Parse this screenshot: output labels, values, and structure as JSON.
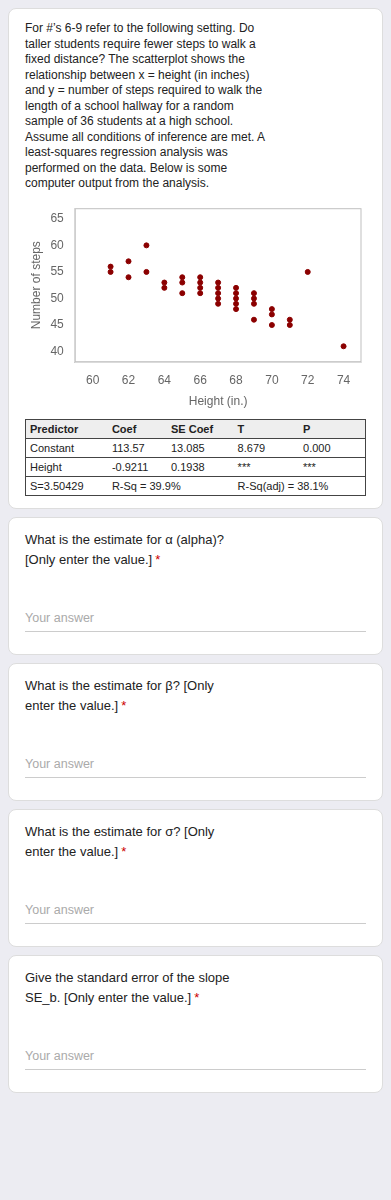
{
  "chart_data": {
    "type": "scatter",
    "title": [
      "For #’s 6-9 refer to the following setting. Do",
      "taller students require fewer steps to walk a",
      "fixed distance? The scatterplot shows the",
      "relationship between x = height (in inches)",
      "and y = number of steps required to walk the",
      "length of a school hallway for a random",
      "sample of 36 students at a high school.",
      "Assume all conditions of inference are met. A",
      "least-squares regression analysis was",
      "performed on the data. Below is some",
      "computer output from the analysis."
    ],
    "x": [
      61,
      61,
      62,
      62,
      63,
      63,
      64,
      64,
      65,
      65,
      65,
      66,
      66,
      66,
      66,
      67,
      67,
      67,
      67,
      67,
      68,
      68,
      68,
      68,
      68,
      69,
      69,
      69,
      69,
      70,
      70,
      70,
      71,
      71,
      72,
      74
    ],
    "values": [
      56,
      55,
      57,
      54,
      60,
      55,
      53,
      52,
      54,
      53,
      51,
      54,
      53,
      52,
      51,
      53,
      52,
      51,
      50,
      49,
      52,
      51,
      50,
      49,
      48,
      51,
      50,
      49,
      46,
      48,
      47,
      45,
      46,
      45,
      55,
      41
    ],
    "color": "#8B0000",
    "xlabel": "Height (in.)",
    "ylabel": "Number of steps",
    "xlim": [
      59,
      75
    ],
    "ylim": [
      38,
      67
    ],
    "xticks": [
      60,
      62,
      64,
      66,
      68,
      70,
      72,
      74
    ],
    "yticks": [
      40,
      45,
      50,
      55,
      60,
      65
    ],
    "grid": false
  },
  "table": {
    "headers": [
      "Predictor",
      "Coef",
      "SE Coef",
      "T",
      "P"
    ],
    "rows": [
      [
        "Constant",
        "113.57",
        "13.085",
        "8.679",
        "0.000"
      ],
      [
        "Height",
        "-0.9211",
        "0.1938",
        "***",
        "***"
      ]
    ],
    "footer": [
      "S=3.50429",
      "R-Sq = 39.9%",
      "R-Sq(adj) = 38.1%"
    ]
  },
  "questions": [
    "What is the estimate for α (alpha)?\n[Only enter the value.]",
    "What is the estimate for β? [Only\nenter the value.]",
    "What is the estimate for σ? [Only\nenter the value.]",
    "Give the standard error of the slope\nSE_b. [Only enter the value.]"
  ],
  "required_mark": {
    "text": "*",
    "color": "#CC0000"
  },
  "answer_placeholder": "Your answer"
}
